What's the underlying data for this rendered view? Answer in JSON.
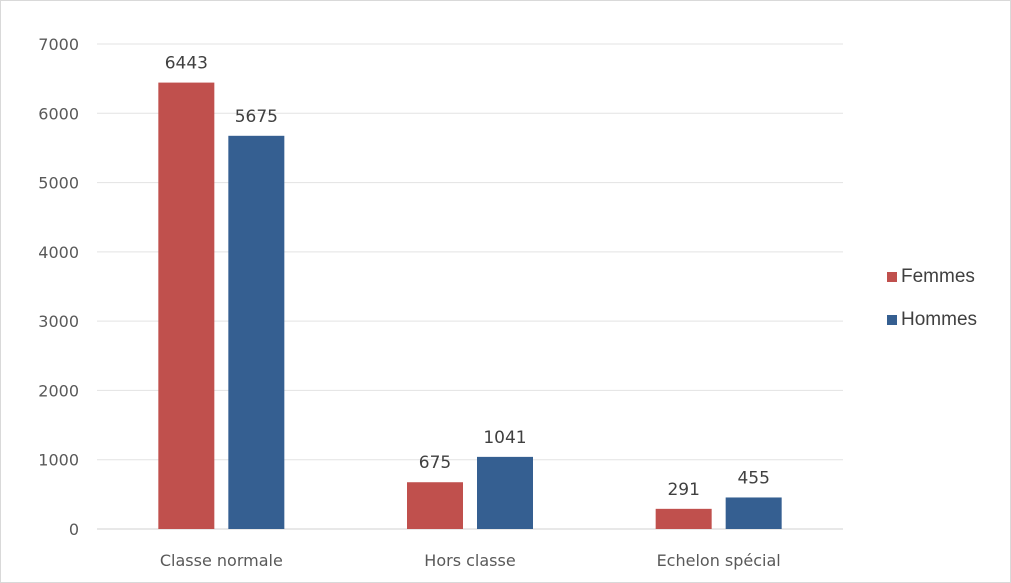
{
  "chart_data": {
    "type": "bar",
    "title": "",
    "xlabel": "",
    "ylabel": "",
    "categories": [
      "Classe normale",
      "Hors classe",
      "Echelon spécial"
    ],
    "series": [
      {
        "name": "Femmes",
        "values": [
          6443,
          675,
          291
        ],
        "color": "#c0504d"
      },
      {
        "name": "Hommes",
        "values": [
          5675,
          1041,
          455
        ],
        "color": "#355f91"
      }
    ],
    "ylim": [
      0,
      7000
    ],
    "yticks": [
      0,
      1000,
      2000,
      3000,
      4000,
      5000,
      6000,
      7000
    ],
    "grid": true,
    "legend": "right",
    "data_labels": true
  }
}
